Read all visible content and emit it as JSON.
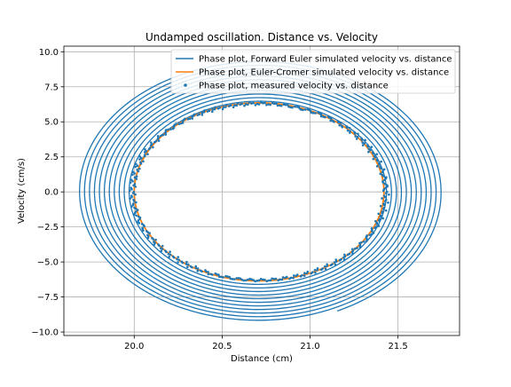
{
  "chart_data": {
    "type": "line",
    "title": "Undamped oscillation. Distance vs. Velocity",
    "xlabel": "Distance (cm)",
    "ylabel": "Velocity (cm/s)",
    "xlim": [
      19.6,
      21.85
    ],
    "ylim": [
      -10.25,
      10.4
    ],
    "xticks": [
      20.0,
      20.5,
      21.0,
      21.5
    ],
    "xtick_labels": [
      "20.0",
      "20.5",
      "21.0",
      "21.5"
    ],
    "yticks": [
      -10.0,
      -7.5,
      -5.0,
      -2.5,
      0.0,
      2.5,
      5.0,
      7.5,
      10.0
    ],
    "ytick_labels": [
      "−10.0",
      "−7.5",
      "−5.0",
      "−2.5",
      "0.0",
      "2.5",
      "5.0",
      "7.5",
      "10.0"
    ],
    "grid": true,
    "legend_position": "upper-right",
    "series": [
      {
        "name": "Phase plot, Forward Euler simulated velocity vs. distance",
        "kind": "line",
        "color": "#1f77b4",
        "center_x": 20.71,
        "center_y": 0.0,
        "amp_x_start": 0.71,
        "amp_x_end": 1.04,
        "amp_y_start": 6.4,
        "amp_y_end": 9.4,
        "revolutions": 11.7,
        "end_x": 21.16,
        "end_y": -8.6
      },
      {
        "name": "Phase plot, Euler-Cromer simulated velocity vs. distance",
        "kind": "line",
        "color": "#ff7f0e",
        "center_x": 20.71,
        "center_y": 0.0,
        "amp_x": 0.71,
        "amp_y": 6.35
      },
      {
        "name": "Phase plot, measured velocity vs. distance",
        "kind": "scatter",
        "color": "#1f77b4",
        "center_x": 20.71,
        "center_y": 0.0,
        "amp_x": 0.72,
        "amp_y": 6.3
      }
    ]
  }
}
